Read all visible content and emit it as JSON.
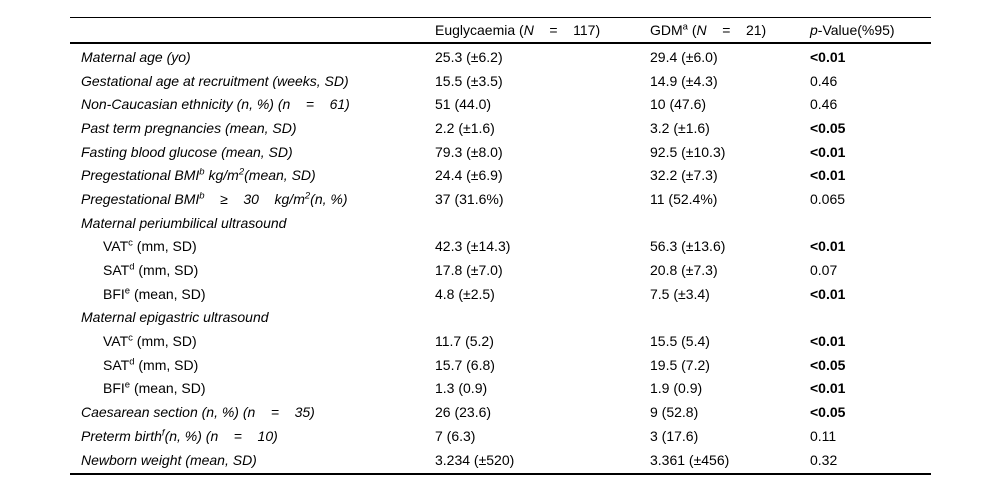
{
  "colors": {
    "text": "#000000",
    "rule": "#000000",
    "background": "#ffffff"
  },
  "table": {
    "header": {
      "col0": [],
      "col1": [
        {
          "t": "Euglycaemia ("
        },
        {
          "t": "N",
          "style": "i"
        },
        {
          "t": "    =    117)"
        }
      ],
      "col2": [
        {
          "t": "GDM"
        },
        {
          "t": "a",
          "style": "sup"
        },
        {
          "t": " ("
        },
        {
          "t": "N",
          "style": "i"
        },
        {
          "t": "    =    21)"
        }
      ],
      "col3": [
        {
          "t": "p",
          "style": "i"
        },
        {
          "t": "-Value(%95)"
        }
      ]
    },
    "rows": [
      {
        "label": [
          {
            "t": "Maternal age (yo)"
          }
        ],
        "italic": true,
        "indent": false,
        "section": false,
        "cells": [
          "25.3 (±6.2)",
          "29.4 (±6.0)"
        ],
        "p": "<0.01",
        "p_bold": true
      },
      {
        "label": [
          {
            "t": "Gestational age at recruitment (weeks, SD)"
          }
        ],
        "italic": true,
        "indent": false,
        "section": false,
        "cells": [
          "15.5 (±3.5)",
          "14.9 (±4.3)"
        ],
        "p": "0.46",
        "p_bold": false
      },
      {
        "label": [
          {
            "t": "Non-Caucasian ethnicity (n, %) (n    =    61)"
          }
        ],
        "italic": true,
        "indent": false,
        "section": false,
        "cells": [
          "51 (44.0)",
          "10 (47.6)"
        ],
        "p": "0.46",
        "p_bold": false
      },
      {
        "label": [
          {
            "t": "Past term pregnancies (mean, SD)"
          }
        ],
        "italic": true,
        "indent": false,
        "section": false,
        "cells": [
          "2.2 (±1.6)",
          "3.2 (±1.6)"
        ],
        "p": "<0.05",
        "p_bold": true
      },
      {
        "label": [
          {
            "t": "Fasting blood glucose (mean, SD)"
          }
        ],
        "italic": true,
        "indent": false,
        "section": false,
        "cells": [
          "79.3 (±8.0)",
          "92.5 (±10.3)"
        ],
        "p": "<0.01",
        "p_bold": true
      },
      {
        "label": [
          {
            "t": "Pregestational BMI"
          },
          {
            "t": "b",
            "style": "sup"
          },
          {
            "t": " kg/m"
          },
          {
            "t": "2",
            "style": "sup"
          },
          {
            "t": "(mean, SD)"
          }
        ],
        "italic": true,
        "indent": false,
        "section": false,
        "cells": [
          "24.4 (±6.9)",
          "32.2 (±7.3)"
        ],
        "p": "<0.01",
        "p_bold": true
      },
      {
        "label": [
          {
            "t": "Pregestational BMI"
          },
          {
            "t": "b",
            "style": "sup"
          },
          {
            "t": "    ≥    30    kg/m"
          },
          {
            "t": "2",
            "style": "sup"
          },
          {
            "t": "(n, %)"
          }
        ],
        "italic": true,
        "indent": false,
        "section": false,
        "cells": [
          "37 (31.6%)",
          "11 (52.4%)"
        ],
        "p": "0.065",
        "p_bold": false
      },
      {
        "label": [
          {
            "t": "Maternal periumbilical ultrasound"
          }
        ],
        "italic": true,
        "indent": false,
        "section": true,
        "cells": [
          "",
          ""
        ],
        "p": "",
        "p_bold": false
      },
      {
        "label": [
          {
            "t": "VAT"
          },
          {
            "t": "c",
            "style": "sup"
          },
          {
            "t": " (mm, SD)"
          }
        ],
        "italic": false,
        "indent": true,
        "section": false,
        "cells": [
          "42.3 (±14.3)",
          "56.3 (±13.6)"
        ],
        "p": "<0.01",
        "p_bold": true
      },
      {
        "label": [
          {
            "t": "SAT"
          },
          {
            "t": "d",
            "style": "sup"
          },
          {
            "t": " (mm, SD)"
          }
        ],
        "italic": false,
        "indent": true,
        "section": false,
        "cells": [
          "17.8 (±7.0)",
          "20.8 (±7.3)"
        ],
        "p": "0.07",
        "p_bold": false
      },
      {
        "label": [
          {
            "t": "BFI"
          },
          {
            "t": "e",
            "style": "sup"
          },
          {
            "t": " (mean, SD)"
          }
        ],
        "italic": false,
        "indent": true,
        "section": false,
        "cells": [
          "4.8 (±2.5)",
          "7.5 (±3.4)"
        ],
        "p": "<0.01",
        "p_bold": true
      },
      {
        "label": [
          {
            "t": "Maternal epigastric ultrasound"
          }
        ],
        "italic": true,
        "indent": false,
        "section": true,
        "cells": [
          "",
          ""
        ],
        "p": "",
        "p_bold": false
      },
      {
        "label": [
          {
            "t": "VAT"
          },
          {
            "t": "c",
            "style": "sup"
          },
          {
            "t": " (mm, SD)"
          }
        ],
        "italic": false,
        "indent": true,
        "section": false,
        "cells": [
          "11.7 (5.2)",
          "15.5 (5.4)"
        ],
        "p": "<0.01",
        "p_bold": true
      },
      {
        "label": [
          {
            "t": "SAT"
          },
          {
            "t": "d",
            "style": "sup"
          },
          {
            "t": " (mm, SD)"
          }
        ],
        "italic": false,
        "indent": true,
        "section": false,
        "cells": [
          "15.7 (6.8)",
          "19.5 (7.2)"
        ],
        "p": "<0.05",
        "p_bold": true
      },
      {
        "label": [
          {
            "t": "BFI"
          },
          {
            "t": "e",
            "style": "sup"
          },
          {
            "t": " (mean, SD)"
          }
        ],
        "italic": false,
        "indent": true,
        "section": false,
        "cells": [
          "1.3 (0.9)",
          "1.9 (0.9)"
        ],
        "p": "<0.01",
        "p_bold": true
      },
      {
        "label": [
          {
            "t": "Caesarean section (n, %) (n    =    35)"
          }
        ],
        "italic": true,
        "indent": false,
        "section": false,
        "cells": [
          "26 (23.6)",
          "9 (52.8)"
        ],
        "p": "<0.05",
        "p_bold": true
      },
      {
        "label": [
          {
            "t": "Preterm birth"
          },
          {
            "t": "f",
            "style": "sup"
          },
          {
            "t": "(n, %) (n    =    10)"
          }
        ],
        "italic": true,
        "indent": false,
        "section": false,
        "cells": [
          "7 (6.3)",
          "3 (17.6)"
        ],
        "p": "0.11",
        "p_bold": false
      },
      {
        "label": [
          {
            "t": "Newborn weight (mean, SD)"
          }
        ],
        "italic": true,
        "indent": false,
        "section": false,
        "cells": [
          "3.234 (±520)",
          "3.361 (±456)"
        ],
        "p": "0.32",
        "p_bold": false
      }
    ]
  }
}
